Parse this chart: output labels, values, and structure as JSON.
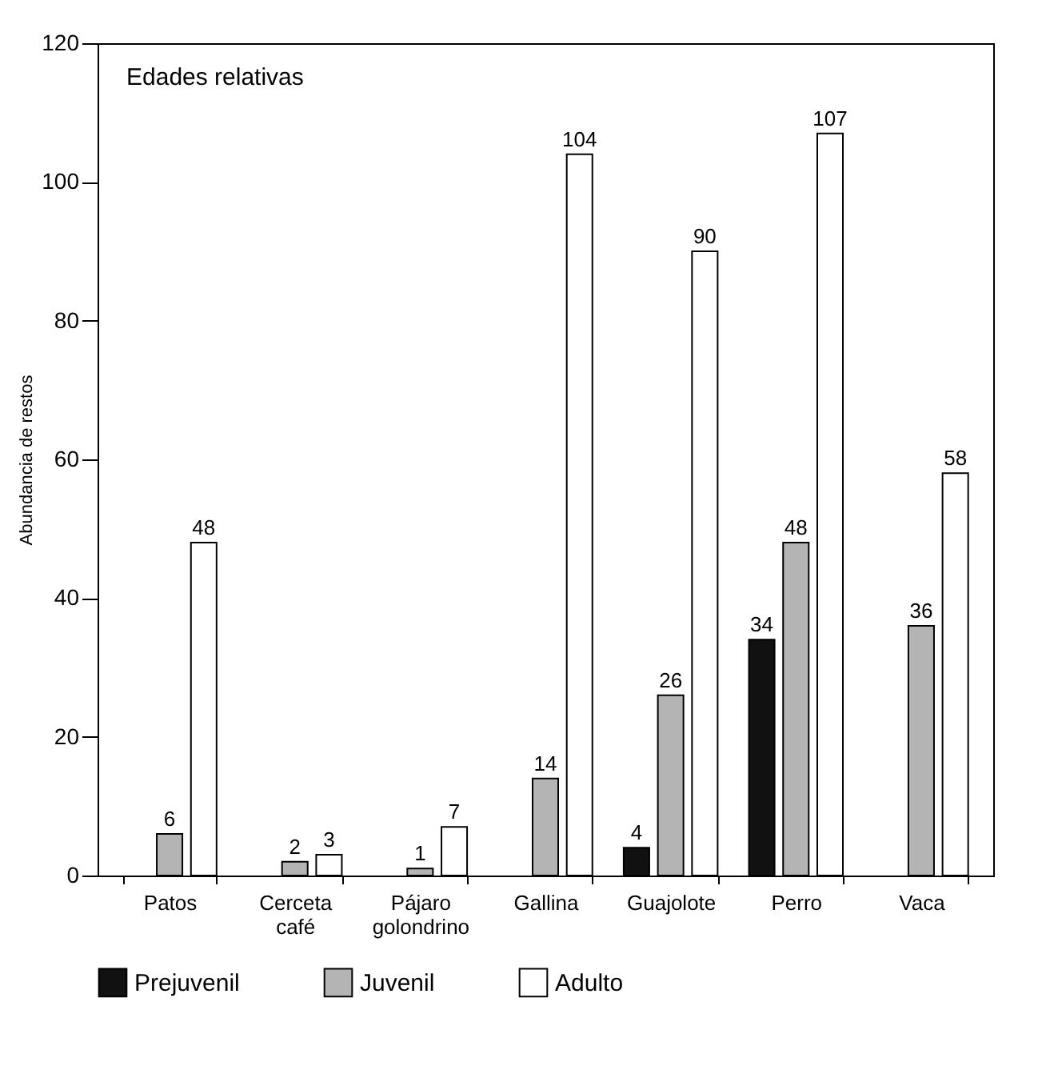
{
  "chart_data": {
    "type": "bar",
    "ylabel": "Abundancia de restos",
    "annotations": [
      "Edades relativas"
    ],
    "categories": [
      "Patos",
      "Cerceta café",
      "Pájaro golondrino",
      "Gallina",
      "Guajolote",
      "Perro",
      "Vaca"
    ],
    "series": [
      {
        "name": "Prejuvenil",
        "color": "#111111",
        "values": [
          null,
          null,
          null,
          null,
          4,
          34,
          null
        ]
      },
      {
        "name": "Juvenil",
        "color": "#b4b4b4",
        "values": [
          6,
          2,
          1,
          14,
          26,
          48,
          36
        ]
      },
      {
        "name": "Adulto",
        "color": "#ffffff",
        "values": [
          48,
          3,
          7,
          104,
          90,
          107,
          58
        ]
      }
    ],
    "ylim": [
      0,
      120
    ],
    "yticks": [
      0,
      20,
      40,
      60,
      80,
      100,
      120
    ],
    "data_labels": true,
    "legend": "bottom",
    "grid": false
  }
}
